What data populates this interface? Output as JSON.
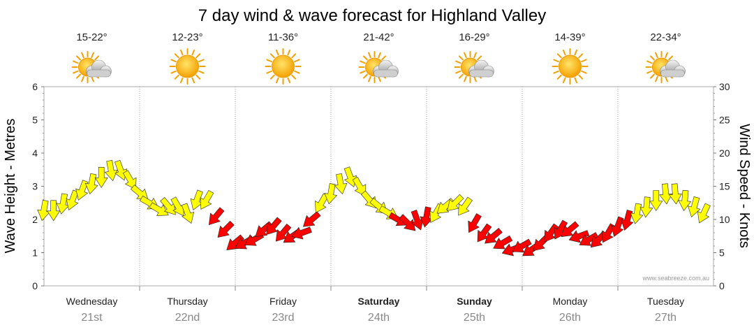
{
  "chart_data": {
    "type": "line",
    "title": "7 day wind & wave forecast for Highland Valley",
    "ylabel_left": "Wave Height - Metres",
    "ylabel_right": "Wind Speed - Knots",
    "ylim_left": [
      0,
      6
    ],
    "ylim_right": [
      0,
      30
    ],
    "yticks_left": [
      "0",
      "1",
      "2",
      "3",
      "4",
      "5",
      "6"
    ],
    "yticks_right": [
      "0",
      "5",
      "10",
      "15",
      "20",
      "25",
      "30"
    ],
    "grid": true,
    "credit": "www.seabreeze.com.au",
    "days": [
      {
        "day": "Wednesday",
        "date": "21st",
        "temp": "15-22°",
        "icon": "sun-cloud-icon",
        "bold": false
      },
      {
        "day": "Thursday",
        "date": "22nd",
        "temp": "12-23°",
        "icon": "sun-icon",
        "bold": false
      },
      {
        "day": "Friday",
        "date": "23rd",
        "temp": "11-36°",
        "icon": "sun-icon",
        "bold": false
      },
      {
        "day": "Saturday",
        "date": "24th",
        "temp": "21-42°",
        "icon": "sun-cloud-icon",
        "bold": true
      },
      {
        "day": "Sunday",
        "date": "25th",
        "temp": "16-29°",
        "icon": "sun-cloud-icon",
        "bold": true
      },
      {
        "day": "Monday",
        "date": "26th",
        "temp": "14-39°",
        "icon": "sun-icon",
        "bold": false
      },
      {
        "day": "Tuesday",
        "date": "27th",
        "temp": "22-34°",
        "icon": "sun-cloud-icon",
        "bold": false
      }
    ],
    "series": [
      {
        "name": "Wind Speed - Knots",
        "x_days": [
          0.0,
          0.1,
          0.2,
          0.3,
          0.4,
          0.5,
          0.6,
          0.7,
          0.8,
          0.9,
          1.0,
          1.1,
          1.2,
          1.3,
          1.4,
          1.5,
          1.6,
          1.7,
          1.8,
          1.9,
          2.0,
          2.1,
          2.2,
          2.3,
          2.4,
          2.5,
          2.6,
          2.7,
          2.8,
          2.9,
          3.0,
          3.1,
          3.2,
          3.3,
          3.4,
          3.5,
          3.6,
          3.7,
          3.8,
          3.9,
          4.0,
          4.1,
          4.2,
          4.3,
          4.4,
          4.5,
          4.6,
          4.7,
          4.8,
          4.9,
          5.0,
          5.1,
          5.2,
          5.3,
          5.4,
          5.5,
          5.6,
          5.7,
          5.8,
          5.9,
          6.0,
          6.1,
          6.2,
          6.3,
          6.4,
          6.5,
          6.6,
          6.7,
          6.8,
          6.9
        ],
        "values": [
          11.5,
          11.5,
          12.5,
          13,
          14.5,
          15.5,
          16.5,
          17.5,
          17.5,
          16,
          14,
          12.5,
          11.5,
          12,
          12,
          11,
          13,
          13,
          10.5,
          8.5,
          6.5,
          6.5,
          7,
          8.5,
          9,
          8,
          7.5,
          8,
          10,
          12.5,
          14,
          15.5,
          16.5,
          15,
          13,
          12,
          11,
          10,
          9.5,
          10,
          10.5,
          11,
          12,
          12.5,
          12,
          9.5,
          8,
          7.5,
          6.5,
          5.5,
          6,
          5.5,
          6.5,
          8,
          8.5,
          8.5,
          7.5,
          7,
          7,
          8,
          9,
          10,
          11,
          12,
          13,
          14,
          14,
          13,
          12,
          11
        ],
        "direction_deg": [
          190,
          180,
          190,
          200,
          200,
          190,
          180,
          170,
          160,
          150,
          130,
          120,
          120,
          140,
          150,
          160,
          200,
          210,
          220,
          225,
          230,
          240,
          240,
          230,
          220,
          220,
          235,
          250,
          230,
          210,
          190,
          170,
          160,
          150,
          140,
          130,
          120,
          120,
          135,
          160,
          190,
          210,
          230,
          225,
          215,
          210,
          215,
          230,
          240,
          250,
          240,
          235,
          225,
          215,
          210,
          230,
          250,
          240,
          225,
          210,
          200,
          195,
          190,
          185,
          180,
          175,
          175,
          185,
          195,
          205
        ]
      }
    ]
  }
}
